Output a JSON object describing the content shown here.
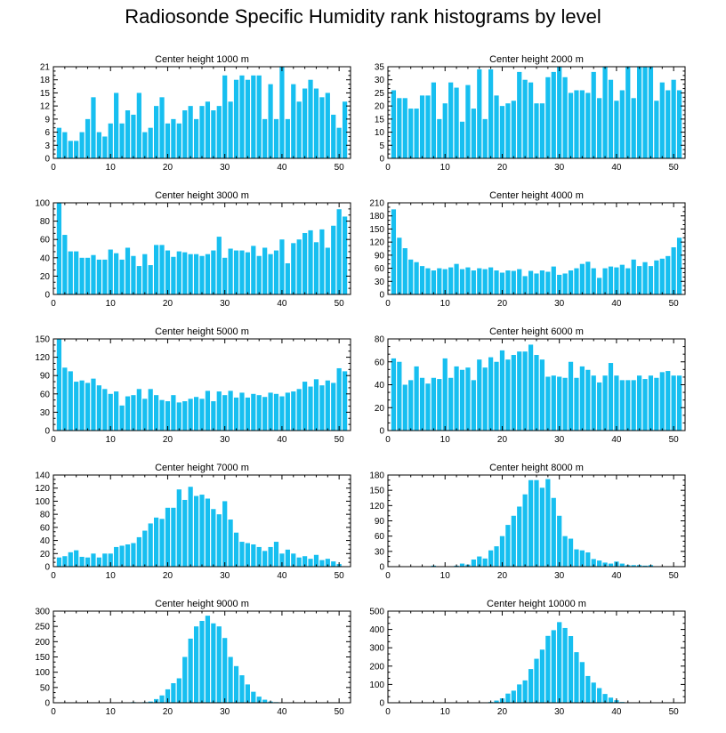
{
  "title": "Radiosonde Specific Humidity rank histograms by level",
  "bar_color": "#17bff0",
  "chart_data": [
    {
      "type": "bar",
      "title": "Center height 1000 m",
      "xlabel": "",
      "ylabel": "",
      "x": [
        1,
        2,
        3,
        4,
        5,
        6,
        7,
        8,
        9,
        10,
        11,
        12,
        13,
        14,
        15,
        16,
        17,
        18,
        19,
        20,
        21,
        22,
        23,
        24,
        25,
        26,
        27,
        28,
        29,
        30,
        31,
        32,
        33,
        34,
        35,
        36,
        37,
        38,
        39,
        40,
        41,
        42,
        43,
        44,
        45,
        46,
        47,
        48,
        49,
        50,
        51
      ],
      "values": [
        7,
        6,
        4,
        4,
        6,
        9,
        14,
        6,
        5,
        8,
        15,
        8,
        11,
        10,
        15,
        6,
        7,
        12,
        14,
        8,
        9,
        8,
        11,
        12,
        9,
        12,
        13,
        11,
        12,
        19,
        13,
        18,
        19,
        18,
        19,
        19,
        9,
        17,
        9,
        21,
        9,
        17,
        13,
        16,
        18,
        16,
        14,
        15,
        10,
        7,
        13
      ],
      "xlim": [
        0,
        52
      ],
      "ylim": [
        0,
        21
      ],
      "xticks": [
        0,
        10,
        20,
        30,
        40,
        50
      ],
      "yticks": [
        0,
        3,
        6,
        9,
        12,
        15,
        18,
        21
      ],
      "ytick_labels": [
        "0",
        "3",
        "6",
        "9",
        "12",
        "15",
        "18",
        "21"
      ]
    },
    {
      "type": "bar",
      "title": "Center height 2000 m",
      "xlabel": "",
      "ylabel": "",
      "x": [
        1,
        2,
        3,
        4,
        5,
        6,
        7,
        8,
        9,
        10,
        11,
        12,
        13,
        14,
        15,
        16,
        17,
        18,
        19,
        20,
        21,
        22,
        23,
        24,
        25,
        26,
        27,
        28,
        29,
        30,
        31,
        32,
        33,
        34,
        35,
        36,
        37,
        38,
        39,
        40,
        41,
        42,
        43,
        44,
        45,
        46,
        47,
        48,
        49,
        50,
        51
      ],
      "values": [
        26,
        23,
        23,
        19,
        19,
        24,
        24,
        29,
        15,
        21,
        29,
        27,
        14,
        28,
        19,
        34,
        15,
        34,
        24,
        20,
        21,
        22,
        33,
        30,
        29,
        21,
        21,
        31,
        33,
        35,
        31,
        25,
        26,
        26,
        25,
        33,
        23,
        35,
        30,
        22,
        26,
        35,
        23,
        35,
        35,
        35,
        22,
        29,
        26,
        30,
        26
      ],
      "xlim": [
        0,
        52
      ],
      "ylim": [
        0,
        35
      ],
      "xticks": [
        0,
        10,
        20,
        30,
        40,
        50
      ],
      "yticks": [
        0,
        5,
        10,
        15,
        20,
        25,
        30,
        35
      ],
      "ytick_labels": [
        "0",
        "5",
        "10",
        "15",
        "20",
        "25",
        "30",
        "35"
      ]
    },
    {
      "type": "bar",
      "title": "Center height 3000 m",
      "xlabel": "",
      "ylabel": "",
      "x": [
        1,
        2,
        3,
        4,
        5,
        6,
        7,
        8,
        9,
        10,
        11,
        12,
        13,
        14,
        15,
        16,
        17,
        18,
        19,
        20,
        21,
        22,
        23,
        24,
        25,
        26,
        27,
        28,
        29,
        30,
        31,
        32,
        33,
        34,
        35,
        36,
        37,
        38,
        39,
        40,
        41,
        42,
        43,
        44,
        45,
        46,
        47,
        48,
        49,
        50,
        51
      ],
      "values": [
        100,
        65,
        47,
        47,
        40,
        40,
        43,
        38,
        38,
        49,
        45,
        38,
        51,
        42,
        31,
        44,
        32,
        54,
        54,
        48,
        41,
        47,
        46,
        44,
        44,
        42,
        44,
        48,
        63,
        40,
        50,
        48,
        48,
        46,
        53,
        42,
        51,
        44,
        48,
        60,
        34,
        56,
        60,
        67,
        70,
        57,
        71,
        51,
        75,
        93,
        85
      ],
      "xlim": [
        0,
        52
      ],
      "ylim": [
        0,
        100
      ],
      "xticks": [
        0,
        10,
        20,
        30,
        40,
        50
      ],
      "yticks": [
        0,
        20,
        40,
        60,
        80,
        100
      ],
      "ytick_labels": [
        "0",
        "20",
        "40",
        "60",
        "80",
        "100"
      ]
    },
    {
      "type": "bar",
      "title": "Center height 4000 m",
      "xlabel": "",
      "ylabel": "",
      "x": [
        1,
        2,
        3,
        4,
        5,
        6,
        7,
        8,
        9,
        10,
        11,
        12,
        13,
        14,
        15,
        16,
        17,
        18,
        19,
        20,
        21,
        22,
        23,
        24,
        25,
        26,
        27,
        28,
        29,
        30,
        31,
        32,
        33,
        34,
        35,
        36,
        37,
        38,
        39,
        40,
        41,
        42,
        43,
        44,
        45,
        46,
        47,
        48,
        49,
        50,
        51
      ],
      "values": [
        195,
        130,
        106,
        80,
        74,
        65,
        60,
        55,
        60,
        58,
        62,
        70,
        58,
        62,
        55,
        60,
        58,
        62,
        55,
        50,
        55,
        54,
        58,
        42,
        54,
        48,
        55,
        52,
        64,
        45,
        48,
        55,
        60,
        70,
        75,
        60,
        38,
        60,
        64,
        62,
        68,
        60,
        80,
        65,
        74,
        65,
        78,
        82,
        88,
        108,
        130
      ],
      "xlim": [
        0,
        52
      ],
      "ylim": [
        0,
        210
      ],
      "xticks": [
        0,
        10,
        20,
        30,
        40,
        50
      ],
      "yticks": [
        0,
        30,
        60,
        90,
        120,
        150,
        180,
        210
      ],
      "ytick_labels": [
        "0",
        "30",
        "60",
        "90",
        "120",
        "150",
        "180",
        "210"
      ]
    },
    {
      "type": "bar",
      "title": "Center height 5000 m",
      "xlabel": "",
      "ylabel": "",
      "x": [
        1,
        2,
        3,
        4,
        5,
        6,
        7,
        8,
        9,
        10,
        11,
        12,
        13,
        14,
        15,
        16,
        17,
        18,
        19,
        20,
        21,
        22,
        23,
        24,
        25,
        26,
        27,
        28,
        29,
        30,
        31,
        32,
        33,
        34,
        35,
        36,
        37,
        38,
        39,
        40,
        41,
        42,
        43,
        44,
        45,
        46,
        47,
        48,
        49,
        50,
        51
      ],
      "values": [
        150,
        103,
        97,
        80,
        82,
        78,
        85,
        74,
        68,
        60,
        64,
        41,
        56,
        58,
        68,
        52,
        68,
        58,
        50,
        48,
        58,
        46,
        48,
        52,
        55,
        52,
        65,
        48,
        64,
        58,
        65,
        54,
        62,
        54,
        60,
        58,
        55,
        62,
        60,
        56,
        62,
        64,
        68,
        80,
        72,
        84,
        74,
        82,
        78,
        102,
        97
      ],
      "xlim": [
        0,
        52
      ],
      "ylim": [
        0,
        150
      ],
      "xticks": [
        0,
        10,
        20,
        30,
        40,
        50
      ],
      "yticks": [
        0,
        30,
        60,
        90,
        120,
        150
      ],
      "ytick_labels": [
        "0",
        "30",
        "60",
        "90",
        "120",
        "150"
      ]
    },
    {
      "type": "bar",
      "title": "Center height 6000 m",
      "xlabel": "",
      "ylabel": "",
      "x": [
        1,
        2,
        3,
        4,
        5,
        6,
        7,
        8,
        9,
        10,
        11,
        12,
        13,
        14,
        15,
        16,
        17,
        18,
        19,
        20,
        21,
        22,
        23,
        24,
        25,
        26,
        27,
        28,
        29,
        30,
        31,
        32,
        33,
        34,
        35,
        36,
        37,
        38,
        39,
        40,
        41,
        42,
        43,
        44,
        45,
        46,
        47,
        48,
        49,
        50,
        51
      ],
      "values": [
        63,
        60,
        40,
        44,
        56,
        46,
        41,
        46,
        45,
        63,
        46,
        56,
        53,
        55,
        44,
        62,
        55,
        64,
        60,
        70,
        62,
        66,
        69,
        69,
        75,
        66,
        62,
        47,
        48,
        47,
        46,
        60,
        46,
        56,
        53,
        48,
        42,
        48,
        59,
        48,
        44,
        44,
        44,
        48,
        45,
        48,
        46,
        51,
        52,
        48,
        48
      ],
      "xlim": [
        0,
        52
      ],
      "ylim": [
        0,
        80
      ],
      "xticks": [
        0,
        10,
        20,
        30,
        40,
        50
      ],
      "yticks": [
        0,
        20,
        40,
        60,
        80
      ],
      "ytick_labels": [
        "0",
        "20",
        "40",
        "60",
        "80"
      ]
    },
    {
      "type": "bar",
      "title": "Center height 7000 m",
      "xlabel": "",
      "ylabel": "",
      "x": [
        1,
        2,
        3,
        4,
        5,
        6,
        7,
        8,
        9,
        10,
        11,
        12,
        13,
        14,
        15,
        16,
        17,
        18,
        19,
        20,
        21,
        22,
        23,
        24,
        25,
        26,
        27,
        28,
        29,
        30,
        31,
        32,
        33,
        34,
        35,
        36,
        37,
        38,
        39,
        40,
        41,
        42,
        43,
        44,
        45,
        46,
        47,
        48,
        49,
        50,
        51
      ],
      "values": [
        14,
        16,
        22,
        25,
        15,
        14,
        20,
        14,
        20,
        20,
        30,
        32,
        34,
        36,
        45,
        55,
        66,
        75,
        73,
        90,
        90,
        118,
        102,
        122,
        108,
        110,
        104,
        88,
        80,
        100,
        72,
        52,
        38,
        36,
        34,
        30,
        24,
        30,
        38,
        20,
        26,
        20,
        14,
        16,
        12,
        18,
        10,
        12,
        8,
        4,
        0
      ],
      "xlim": [
        0,
        52
      ],
      "ylim": [
        0,
        140
      ],
      "xticks": [
        0,
        10,
        20,
        30,
        40,
        50
      ],
      "yticks": [
        0,
        20,
        40,
        60,
        80,
        100,
        120,
        140
      ],
      "ytick_labels": [
        "0",
        "20",
        "40",
        "60",
        "80",
        "100",
        "120",
        "140"
      ]
    },
    {
      "type": "bar",
      "title": "Center height 8000 m",
      "xlabel": "",
      "ylabel": "",
      "x": [
        1,
        2,
        3,
        4,
        5,
        6,
        7,
        8,
        9,
        10,
        11,
        12,
        13,
        14,
        15,
        16,
        17,
        18,
        19,
        20,
        21,
        22,
        23,
        24,
        25,
        26,
        27,
        28,
        29,
        30,
        31,
        32,
        33,
        34,
        35,
        36,
        37,
        38,
        39,
        40,
        41,
        42,
        43,
        44,
        45,
        46,
        47,
        48,
        49,
        50,
        51
      ],
      "values": [
        0,
        0,
        0,
        0,
        0,
        0,
        0,
        2,
        0,
        0,
        0,
        2,
        6,
        4,
        14,
        20,
        16,
        32,
        40,
        60,
        82,
        100,
        118,
        142,
        170,
        170,
        155,
        172,
        135,
        100,
        60,
        55,
        34,
        32,
        28,
        15,
        12,
        8,
        6,
        10,
        6,
        3,
        3,
        3,
        2,
        3,
        0,
        0,
        0,
        0,
        0
      ],
      "xlim": [
        0,
        52
      ],
      "ylim": [
        0,
        180
      ],
      "xticks": [
        0,
        10,
        20,
        30,
        40,
        50
      ],
      "yticks": [
        0,
        30,
        60,
        90,
        120,
        150,
        180
      ],
      "ytick_labels": [
        "0",
        "30",
        "60",
        "90",
        "120",
        "150",
        "180"
      ]
    },
    {
      "type": "bar",
      "title": "Center height 9000 m",
      "xlabel": "",
      "ylabel": "",
      "x": [
        1,
        2,
        3,
        4,
        5,
        6,
        7,
        8,
        9,
        10,
        11,
        12,
        13,
        14,
        15,
        16,
        17,
        18,
        19,
        20,
        21,
        22,
        23,
        24,
        25,
        26,
        27,
        28,
        29,
        30,
        31,
        32,
        33,
        34,
        35,
        36,
        37,
        38,
        39,
        40,
        41,
        42,
        43,
        44,
        45,
        46,
        47,
        48,
        49,
        50,
        51
      ],
      "values": [
        0,
        0,
        0,
        0,
        0,
        0,
        0,
        0,
        0,
        0,
        0,
        0,
        0,
        2,
        0,
        2,
        4,
        12,
        24,
        44,
        64,
        80,
        150,
        210,
        250,
        268,
        285,
        260,
        250,
        212,
        150,
        120,
        90,
        60,
        36,
        20,
        10,
        4,
        2,
        0,
        0,
        0,
        0,
        0,
        0,
        0,
        0,
        0,
        0,
        0,
        0
      ],
      "xlim": [
        0,
        52
      ],
      "ylim": [
        0,
        300
      ],
      "xticks": [
        0,
        10,
        20,
        30,
        40,
        50
      ],
      "yticks": [
        0,
        50,
        100,
        150,
        200,
        250,
        300
      ],
      "ytick_labels": [
        "0",
        "50",
        "100",
        "150",
        "200",
        "250",
        "300"
      ]
    },
    {
      "type": "bar",
      "title": "Center height 10000 m",
      "xlabel": "",
      "ylabel": "",
      "x": [
        1,
        2,
        3,
        4,
        5,
        6,
        7,
        8,
        9,
        10,
        11,
        12,
        13,
        14,
        15,
        16,
        17,
        18,
        19,
        20,
        21,
        22,
        23,
        24,
        25,
        26,
        27,
        28,
        29,
        30,
        31,
        32,
        33,
        34,
        35,
        36,
        37,
        38,
        39,
        40,
        41,
        42,
        43,
        44,
        45,
        46,
        47,
        48,
        49,
        50,
        51
      ],
      "values": [
        0,
        0,
        0,
        0,
        0,
        0,
        0,
        0,
        0,
        0,
        0,
        0,
        0,
        0,
        0,
        0,
        0,
        4,
        12,
        24,
        50,
        66,
        100,
        122,
        184,
        240,
        290,
        365,
        396,
        440,
        408,
        364,
        276,
        222,
        146,
        110,
        80,
        48,
        28,
        14,
        4,
        0,
        0,
        0,
        0,
        0,
        0,
        0,
        0,
        0,
        0
      ],
      "xlim": [
        0,
        52
      ],
      "ylim": [
        0,
        500
      ],
      "xticks": [
        0,
        10,
        20,
        30,
        40,
        50
      ],
      "yticks": [
        0,
        100,
        200,
        300,
        400,
        500
      ],
      "ytick_labels": [
        "0",
        "100",
        "200",
        "300",
        "400",
        "500"
      ]
    }
  ]
}
